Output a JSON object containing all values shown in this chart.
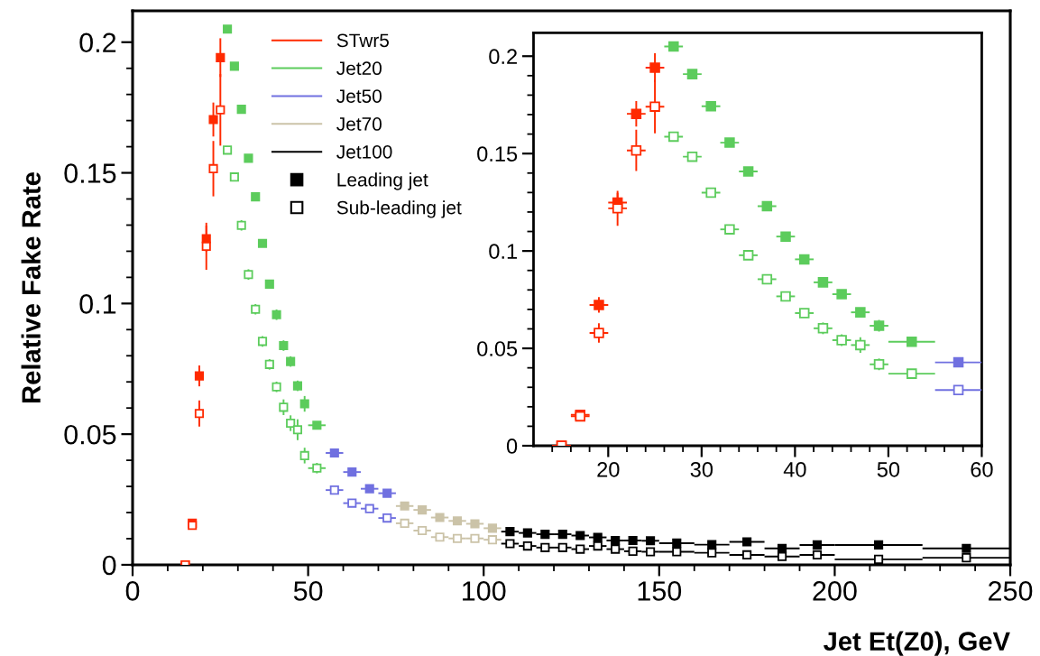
{
  "chart_data": [
    {
      "type": "scatter",
      "xlabel": "Jet Et(Z0), GeV",
      "ylabel": "Relative Fake Rate",
      "xlim": [
        0,
        250
      ],
      "ylim": [
        0,
        0.212
      ],
      "xticks": [
        0,
        {
          "value": 10,
          "label": null
        },
        {
          "value": 20,
          "label": null
        },
        {
          "value": 30,
          "label": null
        },
        {
          "value": 40,
          "label": null
        },
        50,
        {
          "value": 60,
          "label": null
        },
        {
          "value": 70,
          "label": null
        },
        {
          "value": 80,
          "label": null
        },
        {
          "value": 90,
          "label": null
        },
        100,
        {
          "value": 110,
          "label": null
        },
        {
          "value": 120,
          "label": null
        },
        {
          "value": 130,
          "label": null
        },
        {
          "value": 140,
          "label": null
        },
        150,
        {
          "value": 160,
          "label": null
        },
        {
          "value": 170,
          "label": null
        },
        {
          "value": 180,
          "label": null
        },
        {
          "value": 190,
          "label": null
        },
        200,
        {
          "value": 210,
          "label": null
        },
        {
          "value": 220,
          "label": null
        },
        {
          "value": 230,
          "label": null
        },
        {
          "value": 240,
          "label": null
        },
        250
      ],
      "yticks": [
        0,
        {
          "value": 0.01,
          "label": null
        },
        {
          "value": 0.02,
          "label": null
        },
        {
          "value": 0.03,
          "label": null
        },
        {
          "value": 0.04,
          "label": null
        },
        0.05,
        {
          "value": 0.06,
          "label": null
        },
        {
          "value": 0.07,
          "label": null
        },
        {
          "value": 0.08,
          "label": null
        },
        {
          "value": 0.09,
          "label": null
        },
        0.1,
        {
          "value": 0.11,
          "label": null
        },
        {
          "value": 0.12,
          "label": null
        },
        {
          "value": 0.13,
          "label": null
        },
        {
          "value": 0.14,
          "label": null
        },
        0.15,
        {
          "value": 0.16,
          "label": null
        },
        {
          "value": 0.17,
          "label": null
        },
        {
          "value": 0.18,
          "label": null
        },
        {
          "value": 0.19,
          "label": null
        },
        0.2
      ],
      "legend": "top left",
      "grid": false,
      "marker": "square",
      "annotations": [
        "Leading jet",
        "Sub-leading jet"
      ],
      "series": [
        {
          "name": "STwr5",
          "color": "#ff2a00",
          "x": [
            15,
            17,
            19,
            21,
            23,
            25
          ],
          "values": [
            0,
            0.0159,
            0.0723,
            0.1248,
            0.1704,
            0.1941
          ],
          "errors": [
            0.0005,
            0.001,
            0.004,
            0.005,
            0.0065,
            0.0074
          ],
          "xerrors": [
            1,
            1,
            1,
            1,
            1,
            1
          ]
        },
        {
          "color": "#ff2a00",
          "x": [
            15,
            17,
            19,
            21,
            23,
            25
          ],
          "values": [
            0,
            0.0151,
            0.0579,
            0.1219,
            0.1516,
            0.1741
          ],
          "errors": [
            0.0005,
            0.0015,
            0.005,
            0.009,
            0.0106,
            0.0137
          ],
          "xerrors": [
            1,
            1,
            1,
            1,
            1,
            1
          ]
        },
        {
          "name": "Jet20",
          "color": "#5ccc5c",
          "x": [
            27,
            29,
            31,
            33,
            35,
            37,
            39,
            41,
            43,
            45,
            47,
            49,
            52.5
          ],
          "values": [
            0.205,
            0.1908,
            0.1743,
            0.1556,
            0.1408,
            0.123,
            0.1074,
            0.0957,
            0.0839,
            0.0778,
            0.0685,
            0.0616,
            0.0534
          ],
          "errors": [
            0.0005,
            0.0005,
            0.001,
            0.001,
            0.0015,
            0.0015,
            0.0015,
            0.002,
            0.002,
            0.002,
            0.002,
            0.003,
            0.001
          ],
          "xerrors": [
            1,
            1,
            1,
            1,
            1,
            1,
            1,
            1,
            1,
            1,
            1,
            1,
            2.5
          ]
        },
        {
          "color": "#5ccc5c",
          "x": [
            27,
            29,
            31,
            33,
            35,
            37,
            39,
            41,
            43,
            45,
            47,
            49,
            52.5
          ],
          "values": [
            0.1587,
            0.1484,
            0.1299,
            0.1111,
            0.0978,
            0.0855,
            0.0767,
            0.0681,
            0.0603,
            0.0542,
            0.0517,
            0.0418,
            0.037
          ],
          "errors": [
            0.001,
            0.001,
            0.002,
            0.002,
            0.002,
            0.002,
            0.002,
            0.002,
            0.003,
            0.003,
            0.004,
            0.003,
            0.002
          ],
          "xerrors": [
            1,
            1,
            1,
            1,
            1,
            1,
            1,
            1,
            1,
            1,
            1,
            1,
            2.5
          ]
        },
        {
          "name": "Jet50",
          "color": "#7070e0",
          "x": [
            57.5,
            62.5,
            67.5,
            72.5
          ],
          "values": [
            0.0428,
            0.0355,
            0.0291,
            0.0274
          ],
          "xerrors": [
            2.5,
            2.5,
            2.5,
            2.5
          ]
        },
        {
          "color": "#7070e0",
          "x": [
            57.5,
            62.5,
            67.5,
            72.5
          ],
          "values": [
            0.0286,
            0.0236,
            0.0215,
            0.0179
          ],
          "xerrors": [
            2.5,
            2.5,
            2.5,
            2.5
          ]
        },
        {
          "name": "Jet70",
          "color": "#cbc3a8",
          "x": [
            77.5,
            82.5,
            87.5,
            92.5,
            97.5,
            102.5
          ],
          "values": [
            0.0225,
            0.021,
            0.0181,
            0.0168,
            0.0157,
            0.014
          ],
          "xerrors": [
            2.5,
            2.5,
            2.5,
            2.5,
            2.5,
            2.5
          ]
        },
        {
          "color": "#cbc3a8",
          "x": [
            77.5,
            82.5,
            87.5,
            92.5,
            97.5,
            102.5
          ],
          "values": [
            0.0159,
            0.0131,
            0.0106,
            0.0101,
            0.0101,
            0.0096
          ],
          "xerrors": [
            2.5,
            2.5,
            2.5,
            2.5,
            2.5,
            2.5
          ]
        },
        {
          "name": "Jet100",
          "color": "#000000",
          "x": [
            107.5,
            112.5,
            117.5,
            122.5,
            127.5,
            132.5,
            137.5,
            142.5,
            147.5,
            155,
            165,
            175,
            185,
            195,
            212.5,
            237.5
          ],
          "values": [
            0.0127,
            0.0122,
            0.0117,
            0.0117,
            0.0112,
            0.0105,
            0.0093,
            0.0093,
            0.0092,
            0.0083,
            0.0077,
            0.0088,
            0.0063,
            0.0076,
            0.0076,
            0.0063
          ],
          "xerrors": [
            2.5,
            2.5,
            2.5,
            2.5,
            2.5,
            2.5,
            2.5,
            2.5,
            2.5,
            5,
            5,
            5,
            5,
            5,
            12.5,
            12.5
          ]
        },
        {
          "color": "#000000",
          "x": [
            107.5,
            112.5,
            117.5,
            122.5,
            127.5,
            132.5,
            137.5,
            142.5,
            147.5,
            155,
            165,
            175,
            185,
            195,
            212.5,
            237.5
          ],
          "values": [
            0.0081,
            0.0072,
            0.0066,
            0.0066,
            0.006,
            0.0072,
            0.006,
            0.0052,
            0.005,
            0.005,
            0.0046,
            0.0038,
            0.0032,
            0.0038,
            0.0021,
            0.0027
          ],
          "xerrors": [
            2.5,
            2.5,
            2.5,
            2.5,
            2.5,
            2.5,
            2.5,
            2.5,
            2.5,
            5,
            5,
            5,
            5,
            5,
            12.5,
            12.5
          ]
        }
      ]
    },
    {
      "type": "scatter",
      "xlim": [
        12,
        60
      ],
      "ylim": [
        0,
        0.212
      ],
      "grid": false,
      "marker": "square",
      "xticks": [
        {
          "value": 14,
          "label": null
        },
        {
          "value": 16,
          "label": null
        },
        {
          "value": 18,
          "label": null
        },
        20,
        {
          "value": 22,
          "label": null
        },
        {
          "value": 24,
          "label": null
        },
        {
          "value": 26,
          "label": null
        },
        {
          "value": 28,
          "label": null
        },
        30,
        {
          "value": 32,
          "label": null
        },
        {
          "value": 34,
          "label": null
        },
        {
          "value": 36,
          "label": null
        },
        {
          "value": 38,
          "label": null
        },
        40,
        {
          "value": 42,
          "label": null
        },
        {
          "value": 44,
          "label": null
        },
        {
          "value": 46,
          "label": null
        },
        {
          "value": 48,
          "label": null
        },
        50,
        {
          "value": 52,
          "label": null
        },
        {
          "value": 54,
          "label": null
        },
        {
          "value": 56,
          "label": null
        },
        {
          "value": 58,
          "label": null
        },
        60
      ],
      "yticks": [
        0,
        {
          "value": 0.01,
          "label": null
        },
        {
          "value": 0.02,
          "label": null
        },
        {
          "value": 0.03,
          "label": null
        },
        {
          "value": 0.04,
          "label": null
        },
        0.05,
        {
          "value": 0.06,
          "label": null
        },
        {
          "value": 0.07,
          "label": null
        },
        {
          "value": 0.08,
          "label": null
        },
        {
          "value": 0.09,
          "label": null
        },
        0.1,
        {
          "value": 0.11,
          "label": null
        },
        {
          "value": 0.12,
          "label": null
        },
        {
          "value": 0.13,
          "label": null
        },
        {
          "value": 0.14,
          "label": null
        },
        0.15,
        {
          "value": 0.16,
          "label": null
        },
        {
          "value": 0.17,
          "label": null
        },
        {
          "value": 0.18,
          "label": null
        },
        {
          "value": 0.19,
          "label": null
        },
        0.2
      ],
      "series": [
        {
          "color": "#ff2a00",
          "x": [
            15,
            17,
            19,
            21,
            23,
            25
          ],
          "values": [
            0,
            0.0159,
            0.0723,
            0.1248,
            0.1704,
            0.1941
          ],
          "errors": [
            0.0005,
            0.001,
            0.004,
            0.005,
            0.0065,
            0.0074
          ],
          "xerrors": [
            1,
            1,
            1,
            1,
            1,
            1
          ]
        },
        {
          "color": "#ff2a00",
          "x": [
            15,
            17,
            19,
            21,
            23,
            25
          ],
          "values": [
            0,
            0.0151,
            0.0579,
            0.1219,
            0.1516,
            0.1741
          ],
          "errors": [
            0.0005,
            0.0015,
            0.005,
            0.009,
            0.0106,
            0.0137
          ],
          "xerrors": [
            1,
            1,
            1,
            1,
            1,
            1
          ]
        },
        {
          "color": "#5ccc5c",
          "x": [
            27,
            29,
            31,
            33,
            35,
            37,
            39,
            41,
            43,
            45,
            47,
            49,
            52.5
          ],
          "values": [
            0.205,
            0.1908,
            0.1743,
            0.1556,
            0.1408,
            0.123,
            0.1074,
            0.0957,
            0.0839,
            0.0778,
            0.0685,
            0.0616,
            0.0534
          ],
          "errors": [
            0.0005,
            0.0005,
            0.001,
            0.001,
            0.0015,
            0.0015,
            0.0015,
            0.002,
            0.002,
            0.002,
            0.002,
            0.003,
            0.001
          ],
          "xerrors": [
            1,
            1,
            1,
            1,
            1,
            1,
            1,
            1,
            1,
            1,
            1,
            1,
            2.5
          ]
        },
        {
          "color": "#5ccc5c",
          "x": [
            27,
            29,
            31,
            33,
            35,
            37,
            39,
            41,
            43,
            45,
            47,
            49,
            52.5
          ],
          "values": [
            0.1587,
            0.1484,
            0.1299,
            0.1111,
            0.0978,
            0.0855,
            0.0767,
            0.0681,
            0.0603,
            0.0542,
            0.0517,
            0.0418,
            0.037
          ],
          "errors": [
            0.001,
            0.001,
            0.002,
            0.002,
            0.002,
            0.002,
            0.002,
            0.002,
            0.003,
            0.003,
            0.004,
            0.003,
            0.002
          ],
          "xerrors": [
            1,
            1,
            1,
            1,
            1,
            1,
            1,
            1,
            1,
            1,
            1,
            1,
            2.5
          ]
        },
        {
          "color": "#7070e0",
          "x": [
            57.5
          ],
          "values": [
            0.0428
          ],
          "xerrors": [
            2.5
          ]
        },
        {
          "color": "#7070e0",
          "x": [
            57.5
          ],
          "values": [
            0.0286
          ],
          "xerrors": [
            2.5
          ]
        }
      ]
    }
  ]
}
